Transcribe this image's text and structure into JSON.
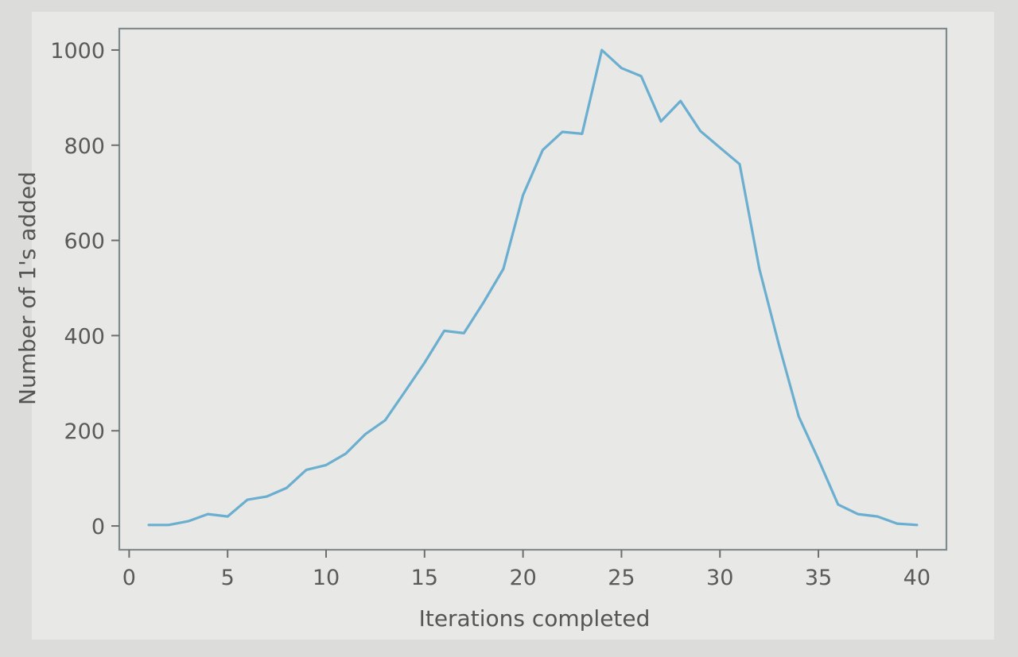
{
  "chart_data": {
    "type": "line",
    "title": "",
    "xlabel": "Iterations completed",
    "ylabel": "Number of 1's added",
    "xlim": [
      -0.5,
      41.5
    ],
    "ylim": [
      -50,
      1045
    ],
    "xticks": [
      0,
      5,
      10,
      15,
      20,
      25,
      30,
      35,
      40
    ],
    "yticks": [
      0,
      200,
      400,
      600,
      800,
      1000
    ],
    "grid": false,
    "legend": "none",
    "line_color": "#6aaed0",
    "series": [
      {
        "x": [
          1,
          2,
          3,
          4,
          5,
          6,
          7,
          8,
          9,
          10,
          11,
          12,
          13,
          14,
          15,
          16,
          17,
          18,
          19,
          20,
          21,
          22,
          23,
          24,
          25,
          26,
          27,
          28,
          29,
          30,
          31,
          32,
          33,
          34,
          35,
          36,
          37,
          38,
          39,
          40
        ],
        "values": [
          2,
          2,
          10,
          25,
          20,
          55,
          62,
          80,
          118,
          128,
          152,
          193,
          222,
          282,
          343,
          410,
          405,
          470,
          540,
          695,
          790,
          828,
          824,
          1000,
          962,
          945,
          850,
          893,
          830,
          795,
          760,
          540,
          380,
          230,
          140,
          45,
          25,
          20,
          5,
          2
        ]
      }
    ]
  }
}
